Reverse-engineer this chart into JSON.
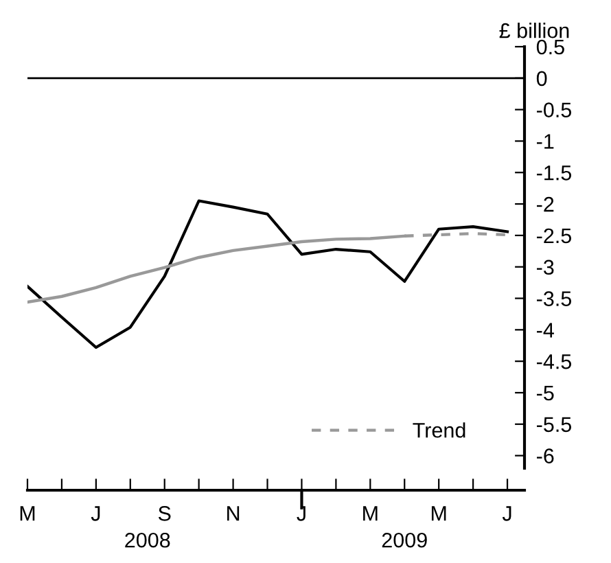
{
  "chart_data": {
    "type": "line",
    "ylabel": "£ billion",
    "categories": [
      "M",
      null,
      "J",
      null,
      "S",
      null,
      "N",
      null,
      "J",
      null,
      "M",
      null,
      "M",
      null,
      "J"
    ],
    "ylim": [
      -6.55,
      0.5
    ],
    "yticks": [
      0.5,
      0,
      {
        "value": -0.5,
        "label": "-0.5"
      },
      {
        "value": -1,
        "label": "-1"
      },
      {
        "value": -1.5,
        "label": "-1.5"
      },
      {
        "value": -2,
        "label": "-2"
      },
      {
        "value": -2.5,
        "label": "-2.5"
      },
      {
        "value": -3,
        "label": "-3"
      },
      {
        "value": -3.5,
        "label": "-3.5"
      },
      {
        "value": -4,
        "label": "-4"
      },
      {
        "value": -4.5,
        "label": "-4.5"
      },
      {
        "value": -5,
        "label": "-5"
      },
      {
        "value": -5.5,
        "label": "-5.5"
      },
      {
        "value": -6,
        "label": "-6"
      }
    ],
    "series": [
      {
        "color": "#000000",
        "line_style": "solid",
        "values": [
          -3.31,
          -3.8,
          -4.28,
          -3.96,
          -3.15,
          -1.95,
          -2.05,
          -2.16,
          -2.8,
          -2.72,
          -2.76,
          -3.23,
          -2.4,
          -2.36,
          -2.44
        ]
      },
      {
        "color": "#999999",
        "line_style": "solid",
        "values": [
          -3.56,
          -3.47,
          -3.33,
          -3.15,
          -3.01,
          -2.85,
          -2.74,
          -2.67,
          -2.6,
          -2.56,
          -2.55,
          -2.51,
          null,
          null,
          null
        ]
      },
      {
        "name": "Trend",
        "color": "#999999",
        "line_style": "dashed",
        "values": [
          null,
          null,
          null,
          null,
          null,
          null,
          null,
          null,
          null,
          null,
          null,
          -2.51,
          -2.49,
          -2.47,
          -2.49
        ]
      }
    ],
    "ref_lines": [
      {
        "axis": "y",
        "value": 0,
        "color": "#000000",
        "line_style": "solid"
      }
    ],
    "annotations": [
      "2008",
      "2009"
    ],
    "legend": "bottom right",
    "grid": false,
    "marker": "none"
  }
}
